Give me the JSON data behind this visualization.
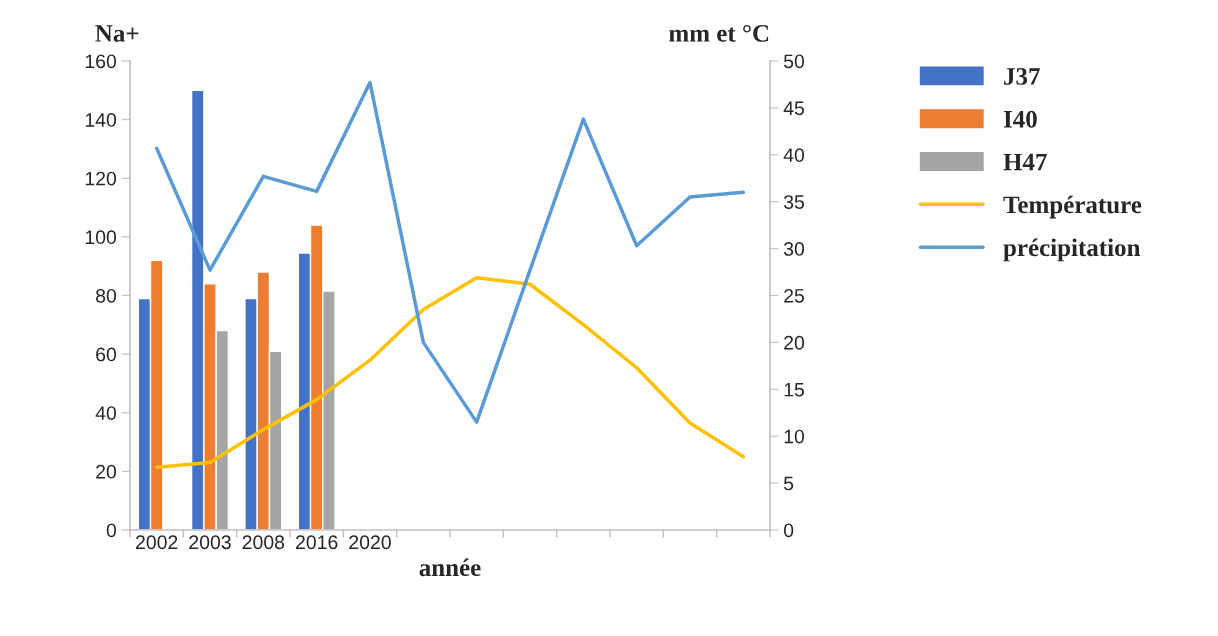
{
  "chart_data": {
    "type": "bar",
    "xlabel": "année",
    "ylabel": "Na+",
    "y2label": "mm et °C",
    "categories": [
      "2002",
      "2003",
      "2008",
      "2016",
      "2020",
      null,
      null,
      null,
      null,
      null,
      null,
      null
    ],
    "series": [
      {
        "name": "J37",
        "color": "#4472c4",
        "values": [
          79,
          150,
          79,
          94.5,
          null,
          null,
          null,
          null,
          null,
          null,
          null,
          null
        ]
      },
      {
        "name": "I40",
        "color": "#ed7d31",
        "values": [
          92,
          84,
          88,
          104,
          null,
          null,
          null,
          null,
          null,
          null,
          null,
          null
        ]
      },
      {
        "name": "H47",
        "color": "#a5a5a5",
        "values": [
          null,
          68,
          61,
          81.5,
          null,
          null,
          null,
          null,
          null,
          null,
          null,
          null
        ]
      },
      {
        "name": "Température",
        "type": "line",
        "axis": "y2",
        "color": "#ffc000",
        "values": [
          6.7,
          7.2,
          10.7,
          13.9,
          18.1,
          23.5,
          26.9,
          26.2,
          21.9,
          17.3,
          11.4,
          7.8
        ]
      },
      {
        "name": "précipitation",
        "type": "line",
        "axis": "y2",
        "color": "#5b9bd5",
        "values": [
          40.7,
          27.7,
          37.7,
          36.1,
          47.7,
          20.0,
          11.5,
          27.7,
          43.8,
          30.3,
          35.5,
          36.0
        ]
      }
    ],
    "ylim": [
      0,
      160
    ],
    "yticks": [
      0,
      20,
      40,
      60,
      80,
      100,
      120,
      140,
      160
    ],
    "y2lim": [
      0,
      50
    ],
    "y2ticks": [
      0,
      5,
      10,
      15,
      20,
      25,
      30,
      35,
      40,
      45,
      50
    ],
    "grid": false,
    "legend": "right"
  }
}
